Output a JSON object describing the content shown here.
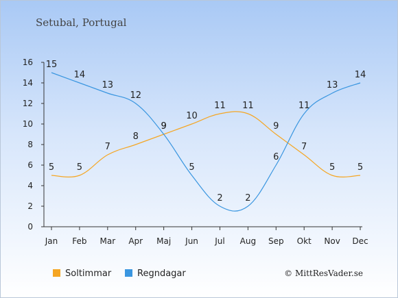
{
  "chart_data": {
    "type": "line",
    "title": "Setubal, Portugal",
    "categories": [
      "Jan",
      "Feb",
      "Mar",
      "Apr",
      "Maj",
      "Jun",
      "Jul",
      "Aug",
      "Sep",
      "Okt",
      "Nov",
      "Dec"
    ],
    "series": [
      {
        "name": "Soltimmar",
        "color": "#f5a623",
        "values": [
          5,
          5,
          7,
          8,
          9,
          10,
          11,
          11,
          9,
          7,
          5,
          5
        ]
      },
      {
        "name": "Regndagar",
        "color": "#3a96e0",
        "values": [
          15,
          14,
          13,
          12,
          9,
          5,
          2,
          2,
          6,
          11,
          13,
          14
        ]
      }
    ],
    "y_ticks": [
      "0",
      "2",
      "4",
      "6",
      "8",
      "10",
      "12",
      "14",
      "16"
    ],
    "ylim": [
      0,
      16
    ],
    "grid": false,
    "legend_position": "bottom-left"
  },
  "credit": "© MittResVader.se"
}
